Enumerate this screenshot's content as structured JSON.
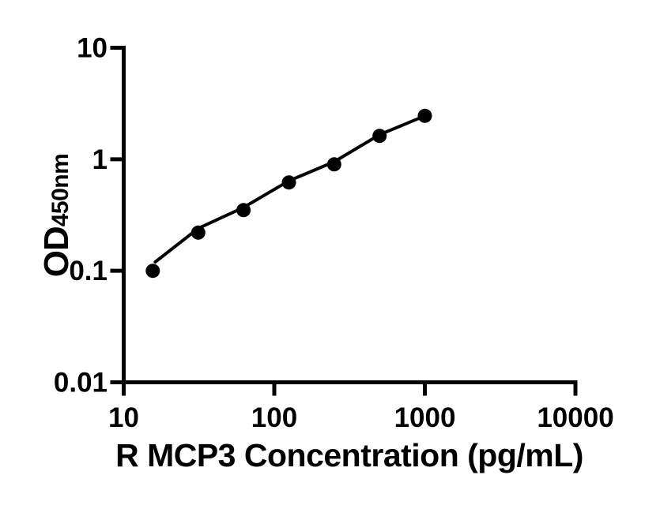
{
  "figure": {
    "background": "#ffffff",
    "ink_color": "#000000"
  },
  "chart_data": {
    "type": "scatter",
    "title": "",
    "xlabel": "R MCP3 Concentration (pg/mL)",
    "ylabel": "OD",
    "ylabel_subscript": "450nm",
    "x_scale": "log",
    "y_scale": "log",
    "xlim": [
      10,
      10000
    ],
    "ylim": [
      0.01,
      10
    ],
    "x_ticks": [
      10,
      100,
      1000,
      10000
    ],
    "x_tick_labels": [
      "10",
      "100",
      "1000",
      "10000"
    ],
    "y_ticks": [
      10,
      1,
      0.1,
      0.01
    ],
    "y_tick_labels": [
      "10",
      "1",
      "0.1",
      "0.01"
    ],
    "grid": false,
    "legend": "none",
    "frame": "left-bottom-spines-only",
    "marker_color": "#000000",
    "line_color": "#000000",
    "series": [
      {
        "name": "standard-curve-points",
        "points": [
          {
            "x": 15.6,
            "y": 0.1
          },
          {
            "x": 31.25,
            "y": 0.22
          },
          {
            "x": 62.5,
            "y": 0.35
          },
          {
            "x": 125,
            "y": 0.62
          },
          {
            "x": 250,
            "y": 0.9
          },
          {
            "x": 500,
            "y": 1.62
          },
          {
            "x": 1000,
            "y": 2.45
          }
        ]
      }
    ],
    "fit_line": [
      {
        "x": 16.2,
        "y": 0.12
      },
      {
        "x": 31.25,
        "y": 0.24
      },
      {
        "x": 62.5,
        "y": 0.37
      },
      {
        "x": 125,
        "y": 0.64
      },
      {
        "x": 250,
        "y": 0.95
      },
      {
        "x": 500,
        "y": 1.66
      },
      {
        "x": 1000,
        "y": 2.45
      }
    ]
  }
}
